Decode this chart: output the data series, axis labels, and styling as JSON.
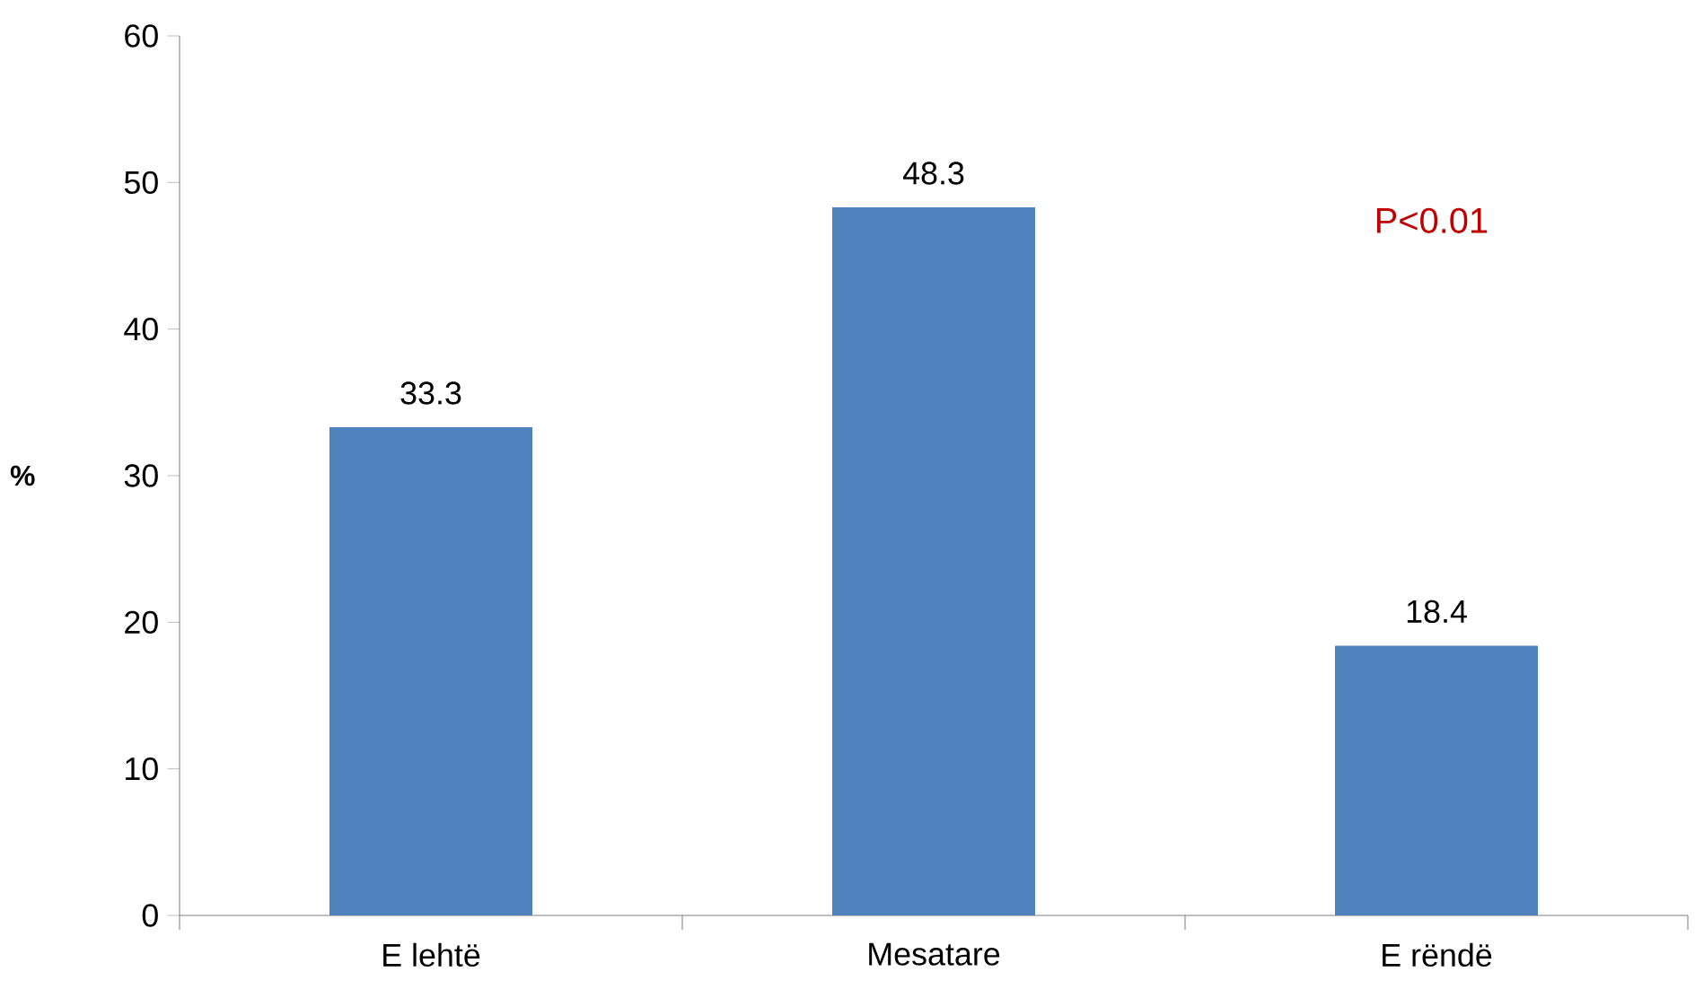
{
  "chart_data": {
    "type": "bar",
    "ylabel": "%",
    "categories": [
      "E lehtë",
      "Mesatare",
      "E rëndë"
    ],
    "values": [
      33.3,
      48.3,
      18.4
    ],
    "color": "#4f81bd",
    "data_labels": true,
    "ylim": [
      0,
      60
    ],
    "yticks": [
      0,
      10,
      20,
      30,
      40,
      50,
      60
    ],
    "annotations": [
      "P<0.01"
    ]
  }
}
